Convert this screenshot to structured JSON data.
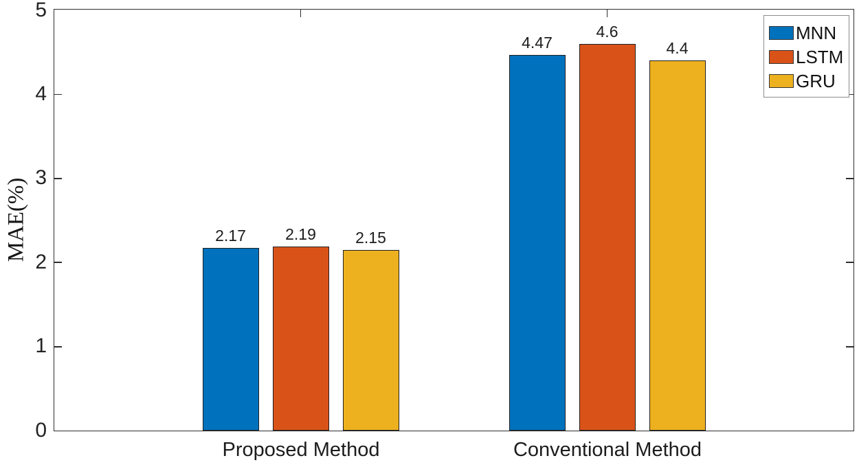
{
  "figure": {
    "background": "#ffffff",
    "axis_color": "#2e2e2e",
    "text_color": "#1c1c1c"
  },
  "chart_data": {
    "type": "bar",
    "title": "",
    "xlabel": "",
    "ylabel": "MAE(%)",
    "categories": [
      "Proposed Method",
      "Conventional Method"
    ],
    "series": [
      {
        "name": "MNN",
        "color": "#0072BD",
        "values": [
          2.17,
          4.47
        ],
        "labels": [
          "2.17",
          "4.47"
        ]
      },
      {
        "name": "LSTM",
        "color": "#D95319",
        "values": [
          2.19,
          4.6
        ],
        "labels": [
          "2.19",
          "4.6"
        ]
      },
      {
        "name": "GRU",
        "color": "#EDB120",
        "values": [
          2.15,
          4.4
        ],
        "labels": [
          "2.15",
          "4.4"
        ]
      }
    ],
    "ylim": [
      0,
      5
    ],
    "yticks": [
      "0",
      "1",
      "2",
      "3",
      "4",
      "5"
    ],
    "grid": false,
    "value_labels_shown": true,
    "bar_edge_color": "#1f1f1f",
    "legend_position": "top-right"
  },
  "legend": {
    "border_color": "#8c8c8c",
    "items": [
      {
        "label": "MNN",
        "color": "#0072BD"
      },
      {
        "label": "LSTM",
        "color": "#D95319"
      },
      {
        "label": "GRU",
        "color": "#EDB120"
      }
    ]
  }
}
